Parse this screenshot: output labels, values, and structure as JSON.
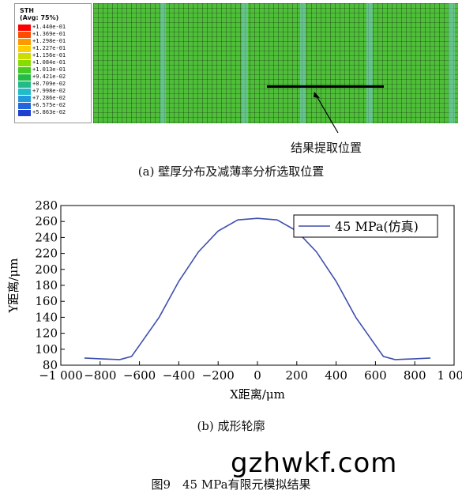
{
  "fea": {
    "legend_title": "STH\n(Avg: 75%)",
    "legend_values": [
      "+1.440e-01",
      "+1.369e-01",
      "+1.298e-01",
      "+1.227e-01",
      "+1.156e-01",
      "+1.084e-01",
      "+1.013e-01",
      "+9.421e-02",
      "+8.709e-02",
      "+7.998e-02",
      "+7.286e-02",
      "+6.575e-02",
      "+5.863e-02"
    ],
    "legend_colors": [
      "#ff0000",
      "#ff4d00",
      "#ff9900",
      "#ffcc00",
      "#ccdd00",
      "#88dd00",
      "#44cc22",
      "#22bb44",
      "#22bb88",
      "#22bbcc",
      "#2299dd",
      "#2266dd",
      "#1f3fd0"
    ],
    "extraction_label": "结果提取位置",
    "caption_a": "(a) 壁厚分布及减薄率分析选取位置"
  },
  "chart_data": {
    "type": "line",
    "xlabel": "X距离/μm",
    "ylabel": "Y距离/μm",
    "xlim": [
      -1000,
      1000
    ],
    "ylim": [
      80,
      280
    ],
    "x_ticks": [
      -1000,
      -800,
      -600,
      -400,
      -200,
      0,
      200,
      400,
      600,
      800,
      1000
    ],
    "x_tick_labels": [
      "−1 000",
      "−800",
      "−600",
      "−400",
      "−200",
      "0",
      "200",
      "400",
      "600",
      "800",
      "1 000"
    ],
    "y_ticks": [
      80,
      100,
      120,
      140,
      160,
      180,
      200,
      220,
      240,
      260,
      280
    ],
    "y_tick_labels": [
      "80",
      "100",
      "120",
      "140",
      "160",
      "180",
      "200",
      "220",
      "240",
      "260",
      "280"
    ],
    "legend_position": "top-right",
    "series": [
      {
        "name": "45 MPa(仿真)",
        "color": "#3f4fae",
        "x": [
          -880,
          -800,
          -700,
          -640,
          -600,
          -500,
          -400,
          -300,
          -200,
          -100,
          0,
          100,
          200,
          300,
          400,
          500,
          600,
          640,
          700,
          800,
          880
        ],
        "y": [
          89,
          88,
          87,
          91,
          105,
          140,
          185,
          222,
          248,
          262,
          264,
          262,
          248,
          222,
          185,
          140,
          105,
          91,
          87,
          88,
          89
        ]
      }
    ]
  },
  "caption_b": "(b) 成形轮廓",
  "figure_caption": "图9　45 MPa有限元模拟结果",
  "watermark": "gzhwkf.com"
}
